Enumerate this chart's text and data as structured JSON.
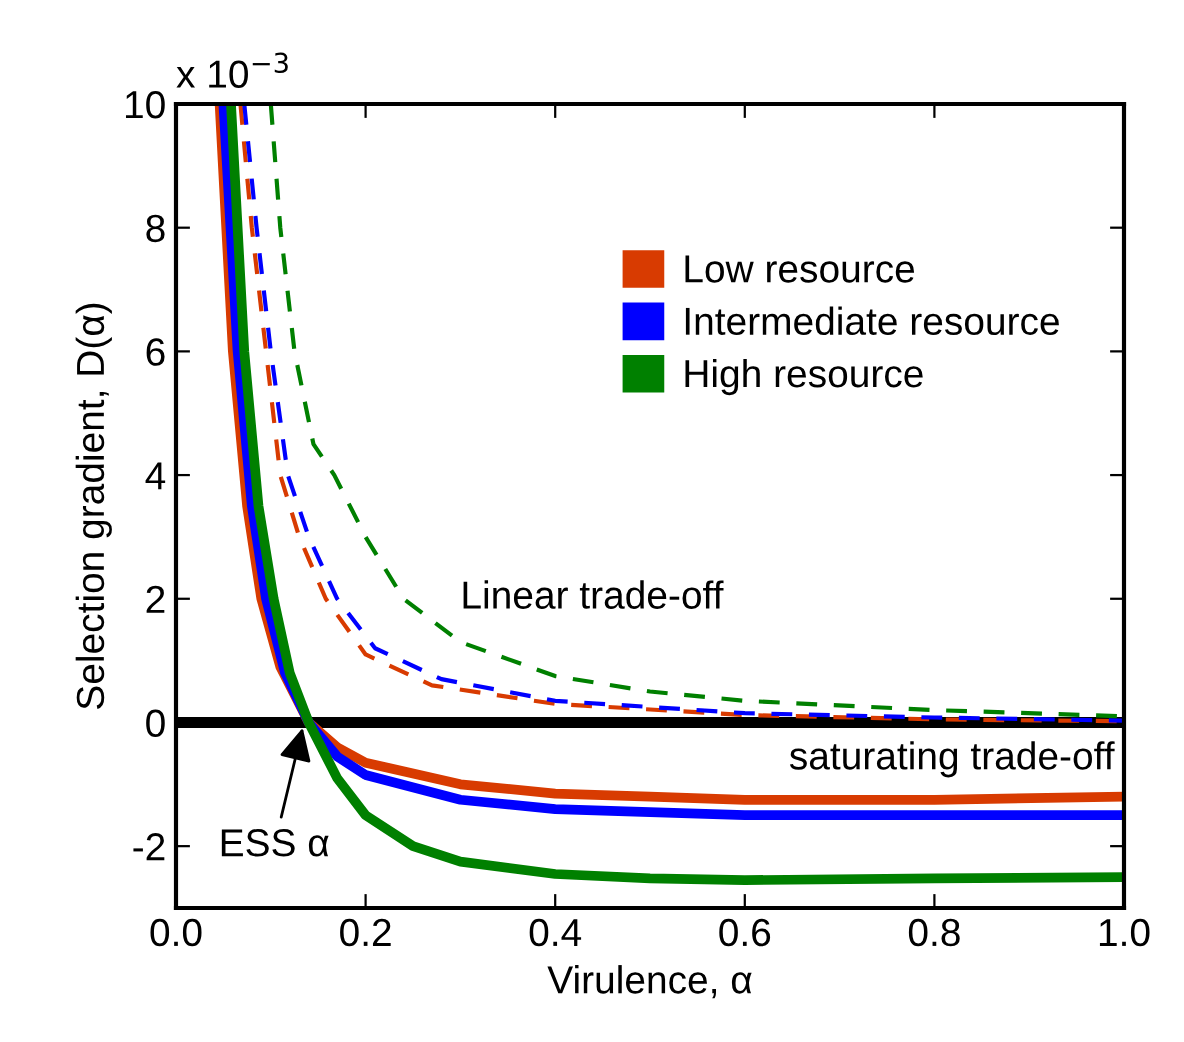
{
  "chart_data": {
    "type": "line",
    "xlabel": "Virulence, α",
    "ylabel": "Selection gradient, D(α)",
    "xlim": [
      0,
      1
    ],
    "xticks": [
      {
        "value": 0,
        "label": "0.0"
      },
      {
        "value": 0.2,
        "label": "0.2"
      },
      {
        "value": 0.4,
        "label": "0.4"
      },
      {
        "value": 0.6,
        "label": "0.6"
      },
      {
        "value": 0.8,
        "label": "0.8"
      },
      {
        "value": 1,
        "label": "1.0"
      }
    ],
    "ylim": [
      -3,
      10
    ],
    "yticks": [
      -2,
      0,
      2,
      4,
      6,
      8,
      10
    ],
    "grid": false,
    "legend": "top right",
    "marker": "none",
    "series": [
      {
        "name": "Low resource",
        "color": "#d83b01",
        "line_style": "solid",
        "x": [
          0.046,
          0.06,
          0.075,
          0.09,
          0.11,
          0.14,
          0.17,
          0.2,
          0.3,
          0.4,
          0.5,
          0.6,
          0.8,
          1.0
        ],
        "values": [
          10,
          6,
          3.5,
          2,
          0.9,
          0,
          -0.4,
          -0.65,
          -1.0,
          -1.15,
          -1.2,
          -1.25,
          -1.25,
          -1.2
        ]
      },
      {
        "name": "Intermediate resource",
        "color": "#0000ff",
        "line_style": "solid",
        "x": [
          0.05,
          0.065,
          0.08,
          0.095,
          0.115,
          0.14,
          0.17,
          0.2,
          0.3,
          0.4,
          0.6,
          0.8,
          1.0
        ],
        "values": [
          10,
          6,
          3.5,
          2,
          0.8,
          0,
          -0.55,
          -0.85,
          -1.25,
          -1.4,
          -1.5,
          -1.5,
          -1.5
        ]
      },
      {
        "name": "High resource",
        "color": "#008000",
        "line_style": "solid",
        "x": [
          0.058,
          0.072,
          0.087,
          0.103,
          0.12,
          0.14,
          0.17,
          0.2,
          0.25,
          0.3,
          0.4,
          0.5,
          0.6,
          0.8,
          1.0
        ],
        "values": [
          10,
          6,
          3.5,
          2,
          0.8,
          0,
          -0.9,
          -1.5,
          -2.0,
          -2.25,
          -2.45,
          -2.52,
          -2.55,
          -2.52,
          -2.5
        ]
      },
      {
        "color": "#d83b01",
        "line_style": "dashed",
        "x": [
          0.068,
          0.08,
          0.095,
          0.11,
          0.13,
          0.158,
          0.2,
          0.27,
          0.4,
          0.6,
          0.8,
          1.0
        ],
        "values": [
          10,
          8,
          6,
          4,
          3,
          2,
          1.1,
          0.6,
          0.3,
          0.12,
          0.05,
          0.02
        ]
      },
      {
        "color": "#0000ff",
        "line_style": "dashed",
        "x": [
          0.072,
          0.085,
          0.1,
          0.118,
          0.14,
          0.17,
          0.21,
          0.28,
          0.4,
          0.6,
          0.8,
          1.0
        ],
        "values": [
          10,
          8,
          6,
          4,
          3,
          2,
          1.2,
          0.7,
          0.35,
          0.15,
          0.08,
          0.03
        ]
      },
      {
        "color": "#008000",
        "line_style": "dashed",
        "x": [
          0.1,
          0.11,
          0.125,
          0.145,
          0.167,
          0.2,
          0.24,
          0.3,
          0.4,
          0.5,
          0.6,
          0.8,
          1.0
        ],
        "values": [
          10,
          8,
          6,
          4.5,
          4,
          3,
          2,
          1.3,
          0.75,
          0.5,
          0.35,
          0.2,
          0.1
        ]
      }
    ],
    "ref_lines": [
      {
        "axis": "y",
        "value": 0,
        "color": "#000000",
        "line_style": "solid"
      }
    ],
    "annotations": [
      "x 10$^{−3}$",
      "Linear trade-off",
      "saturating trade-off",
      {
        "text": "ESS α",
        "x": 0.135,
        "y": 0
      }
    ]
  }
}
